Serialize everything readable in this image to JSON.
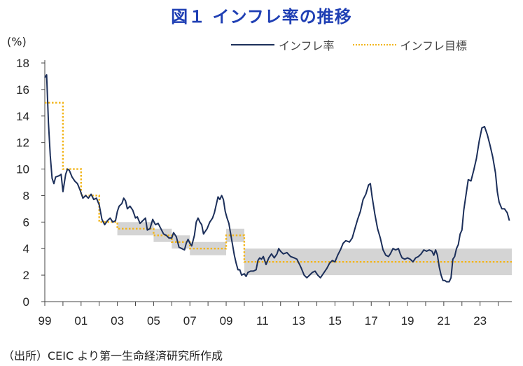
{
  "chart_data": {
    "type": "line",
    "title": "図１ インフレ率の推移",
    "ylabel": "(%)",
    "source": "（出所）CEIC より第一生命経済研究所作成",
    "ylim": [
      0,
      18
    ],
    "yticks": [
      0,
      2,
      4,
      6,
      8,
      10,
      12,
      14,
      16,
      18
    ],
    "xlim": [
      1999.0,
      2024.75
    ],
    "xticks": [
      {
        "v": 1999,
        "label": "99"
      },
      {
        "v": 2001,
        "label": "01"
      },
      {
        "v": 2003,
        "label": "03"
      },
      {
        "v": 2005,
        "label": "05"
      },
      {
        "v": 2007,
        "label": "07"
      },
      {
        "v": 2009,
        "label": "09"
      },
      {
        "v": 2011,
        "label": "11"
      },
      {
        "v": 2013,
        "label": "13"
      },
      {
        "v": 2015,
        "label": "15"
      },
      {
        "v": 2017,
        "label": "17"
      },
      {
        "v": 2019,
        "label": "19"
      },
      {
        "v": 2021,
        "label": "21"
      },
      {
        "v": 2023,
        "label": "23"
      }
    ],
    "legend_position": "top-right",
    "series": [
      {
        "name": "インフレ率",
        "color": "#1c2f5a",
        "style": "solid",
        "points": [
          [
            1999.0,
            16.9
          ],
          [
            1999.1,
            17.1
          ],
          [
            1999.2,
            13.5
          ],
          [
            1999.3,
            11.0
          ],
          [
            1999.4,
            9.3
          ],
          [
            1999.5,
            8.9
          ],
          [
            1999.6,
            9.4
          ],
          [
            1999.8,
            9.5
          ],
          [
            1999.9,
            9.6
          ],
          [
            2000.0,
            8.3
          ],
          [
            2000.15,
            9.6
          ],
          [
            2000.25,
            10.0
          ],
          [
            2000.35,
            9.9
          ],
          [
            2000.5,
            9.4
          ],
          [
            2000.65,
            9.1
          ],
          [
            2000.8,
            8.9
          ],
          [
            2000.95,
            8.4
          ],
          [
            2001.1,
            7.8
          ],
          [
            2001.25,
            8.0
          ],
          [
            2001.4,
            7.8
          ],
          [
            2001.55,
            8.1
          ],
          [
            2001.7,
            7.7
          ],
          [
            2001.85,
            7.8
          ],
          [
            2002.0,
            7.3
          ],
          [
            2002.15,
            6.2
          ],
          [
            2002.3,
            5.8
          ],
          [
            2002.45,
            6.1
          ],
          [
            2002.6,
            6.3
          ],
          [
            2002.75,
            6.0
          ],
          [
            2002.9,
            6.1
          ],
          [
            2003.0,
            6.8
          ],
          [
            2003.1,
            7.2
          ],
          [
            2003.25,
            7.4
          ],
          [
            2003.35,
            7.8
          ],
          [
            2003.45,
            7.6
          ],
          [
            2003.55,
            7.0
          ],
          [
            2003.7,
            7.2
          ],
          [
            2003.85,
            6.9
          ],
          [
            2004.0,
            6.3
          ],
          [
            2004.1,
            6.4
          ],
          [
            2004.25,
            5.9
          ],
          [
            2004.4,
            6.1
          ],
          [
            2004.55,
            6.3
          ],
          [
            2004.65,
            5.4
          ],
          [
            2004.8,
            5.5
          ],
          [
            2004.95,
            6.2
          ],
          [
            2005.1,
            5.8
          ],
          [
            2005.25,
            5.9
          ],
          [
            2005.4,
            5.5
          ],
          [
            2005.55,
            5.1
          ],
          [
            2005.7,
            5.0
          ],
          [
            2005.85,
            4.8
          ],
          [
            2006.0,
            4.8
          ],
          [
            2006.1,
            5.2
          ],
          [
            2006.25,
            4.9
          ],
          [
            2006.4,
            4.1
          ],
          [
            2006.55,
            4.0
          ],
          [
            2006.7,
            3.9
          ],
          [
            2006.8,
            4.4
          ],
          [
            2006.9,
            4.7
          ],
          [
            2007.0,
            4.4
          ],
          [
            2007.1,
            4.2
          ],
          [
            2007.25,
            5.0
          ],
          [
            2007.35,
            6.0
          ],
          [
            2007.45,
            6.3
          ],
          [
            2007.55,
            6.0
          ],
          [
            2007.65,
            5.8
          ],
          [
            2007.75,
            5.1
          ],
          [
            2007.85,
            5.3
          ],
          [
            2007.95,
            5.5
          ],
          [
            2008.1,
            6.0
          ],
          [
            2008.25,
            6.3
          ],
          [
            2008.35,
            6.7
          ],
          [
            2008.45,
            7.3
          ],
          [
            2008.55,
            7.9
          ],
          [
            2008.65,
            7.7
          ],
          [
            2008.75,
            8.0
          ],
          [
            2008.85,
            7.7
          ],
          [
            2008.95,
            6.8
          ],
          [
            2009.05,
            6.3
          ],
          [
            2009.15,
            5.9
          ],
          [
            2009.25,
            5.1
          ],
          [
            2009.35,
            4.3
          ],
          [
            2009.45,
            3.5
          ],
          [
            2009.55,
            2.9
          ],
          [
            2009.65,
            2.4
          ],
          [
            2009.75,
            2.4
          ],
          [
            2009.85,
            2.0
          ],
          [
            2010.0,
            2.1
          ],
          [
            2010.1,
            1.9
          ],
          [
            2010.2,
            2.2
          ],
          [
            2010.35,
            2.3
          ],
          [
            2010.5,
            2.3
          ],
          [
            2010.65,
            2.4
          ],
          [
            2010.75,
            3.1
          ],
          [
            2010.85,
            3.3
          ],
          [
            2010.95,
            3.2
          ],
          [
            2011.05,
            3.4
          ],
          [
            2011.2,
            2.8
          ],
          [
            2011.35,
            3.3
          ],
          [
            2011.5,
            3.6
          ],
          [
            2011.65,
            3.3
          ],
          [
            2011.8,
            3.6
          ],
          [
            2011.9,
            4.0
          ],
          [
            2012.0,
            3.8
          ],
          [
            2012.15,
            3.6
          ],
          [
            2012.35,
            3.7
          ],
          [
            2012.55,
            3.4
          ],
          [
            2012.75,
            3.3
          ],
          [
            2012.9,
            3.2
          ],
          [
            2013.05,
            2.8
          ],
          [
            2013.15,
            2.5
          ],
          [
            2013.3,
            2.0
          ],
          [
            2013.45,
            1.8
          ],
          [
            2013.6,
            2.0
          ],
          [
            2013.75,
            2.2
          ],
          [
            2013.9,
            2.3
          ],
          [
            2014.05,
            2.0
          ],
          [
            2014.2,
            1.8
          ],
          [
            2014.35,
            2.1
          ],
          [
            2014.55,
            2.5
          ],
          [
            2014.7,
            2.9
          ],
          [
            2014.85,
            3.1
          ],
          [
            2015.0,
            3.0
          ],
          [
            2015.15,
            3.5
          ],
          [
            2015.3,
            3.9
          ],
          [
            2015.45,
            4.4
          ],
          [
            2015.6,
            4.6
          ],
          [
            2015.8,
            4.5
          ],
          [
            2015.95,
            4.8
          ],
          [
            2016.1,
            5.5
          ],
          [
            2016.25,
            6.2
          ],
          [
            2016.4,
            6.8
          ],
          [
            2016.55,
            7.7
          ],
          [
            2016.7,
            8.1
          ],
          [
            2016.85,
            8.8
          ],
          [
            2016.95,
            8.9
          ],
          [
            2017.05,
            7.9
          ],
          [
            2017.2,
            6.6
          ],
          [
            2017.35,
            5.5
          ],
          [
            2017.5,
            4.8
          ],
          [
            2017.65,
            3.9
          ],
          [
            2017.8,
            3.5
          ],
          [
            2017.95,
            3.4
          ],
          [
            2018.05,
            3.6
          ],
          [
            2018.2,
            4.0
          ],
          [
            2018.35,
            3.9
          ],
          [
            2018.5,
            4.0
          ],
          [
            2018.6,
            3.6
          ],
          [
            2018.7,
            3.3
          ],
          [
            2018.85,
            3.2
          ],
          [
            2019.0,
            3.3
          ],
          [
            2019.15,
            3.2
          ],
          [
            2019.3,
            3.0
          ],
          [
            2019.45,
            3.3
          ],
          [
            2019.6,
            3.4
          ],
          [
            2019.75,
            3.6
          ],
          [
            2019.9,
            3.9
          ],
          [
            2020.05,
            3.8
          ],
          [
            2020.2,
            3.9
          ],
          [
            2020.35,
            3.8
          ],
          [
            2020.45,
            3.5
          ],
          [
            2020.55,
            3.9
          ],
          [
            2020.65,
            3.5
          ],
          [
            2020.75,
            2.6
          ],
          [
            2020.85,
            2.0
          ],
          [
            2020.95,
            1.6
          ],
          [
            2021.05,
            1.6
          ],
          [
            2021.15,
            1.5
          ],
          [
            2021.3,
            1.5
          ],
          [
            2021.4,
            1.8
          ],
          [
            2021.5,
            3.2
          ],
          [
            2021.6,
            3.4
          ],
          [
            2021.7,
            4.0
          ],
          [
            2021.8,
            4.3
          ],
          [
            2021.9,
            5.1
          ],
          [
            2022.0,
            5.4
          ],
          [
            2022.1,
            6.9
          ],
          [
            2022.2,
            7.8
          ],
          [
            2022.35,
            9.2
          ],
          [
            2022.5,
            9.1
          ],
          [
            2022.65,
            9.9
          ],
          [
            2022.8,
            10.8
          ],
          [
            2022.95,
            12.1
          ],
          [
            2023.1,
            13.1
          ],
          [
            2023.25,
            13.2
          ],
          [
            2023.4,
            12.6
          ],
          [
            2023.55,
            11.8
          ],
          [
            2023.7,
            10.9
          ],
          [
            2023.85,
            9.7
          ],
          [
            2023.95,
            8.3
          ],
          [
            2024.05,
            7.5
          ],
          [
            2024.2,
            7.0
          ],
          [
            2024.35,
            7.0
          ],
          [
            2024.5,
            6.7
          ],
          [
            2024.62,
            6.1
          ]
        ]
      },
      {
        "name": "インフレ目標",
        "color": "#f2b51a",
        "style": "dotted",
        "steps": [
          [
            1999.0,
            15.0
          ],
          [
            2000.0,
            10.0
          ],
          [
            2001.0,
            8.0
          ],
          [
            2002.0,
            6.0
          ],
          [
            2003.0,
            5.5
          ],
          [
            2005.0,
            5.0
          ],
          [
            2006.0,
            4.5
          ],
          [
            2007.0,
            4.0
          ],
          [
            2009.0,
            5.0
          ],
          [
            2010.0,
            3.0
          ],
          [
            2024.75,
            3.0
          ]
        ]
      }
    ],
    "target_bands": [
      {
        "x0": 2003.0,
        "x1": 2005.0,
        "y0": 5.0,
        "y1": 6.0
      },
      {
        "x0": 2005.0,
        "x1": 2006.0,
        "y0": 4.5,
        "y1": 5.5
      },
      {
        "x0": 2006.0,
        "x1": 2007.0,
        "y0": 4.0,
        "y1": 5.0
      },
      {
        "x0": 2007.0,
        "x1": 2009.0,
        "y0": 3.5,
        "y1": 4.5
      },
      {
        "x0": 2009.0,
        "x1": 2010.0,
        "y0": 4.5,
        "y1": 5.5
      },
      {
        "x0": 2010.0,
        "x1": 2024.75,
        "y0": 2.0,
        "y1": 4.0
      }
    ]
  }
}
